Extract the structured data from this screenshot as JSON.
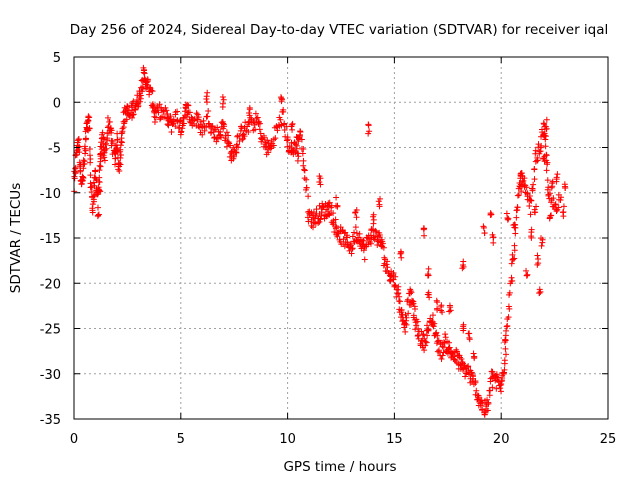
{
  "chart_data": {
    "type": "scatter",
    "title": "Day 256 of 2024, Sidereal Day-to-day VTEC variation (SDTVAR) for receiver iqal",
    "xlabel": "GPS time / hours",
    "ylabel": "SDTVAR / TECUs",
    "xlim": [
      0,
      25
    ],
    "ylim": [
      -35,
      5
    ],
    "xticks": [
      0,
      5,
      10,
      15,
      20,
      25
    ],
    "yticks": [
      5,
      0,
      -5,
      -10,
      -15,
      -20,
      -25,
      -30,
      -35
    ],
    "xtick_labels": [
      "0",
      "5",
      "10",
      "15",
      "20",
      "25"
    ],
    "ytick_labels": [
      "5",
      "0",
      "-5",
      "-10",
      "-15",
      "-20",
      "-25",
      "-30",
      "-35"
    ],
    "grid": true,
    "marker": "+",
    "color": "#ff0000",
    "series": [
      {
        "name": "SDTVAR",
        "trace_points": [
          [
            0.0,
            -9.5
          ],
          [
            0.1,
            -6.0
          ],
          [
            0.2,
            -4.0
          ],
          [
            0.3,
            -7.5
          ],
          [
            0.4,
            -9.0
          ],
          [
            0.5,
            -6.0
          ],
          [
            0.6,
            -3.0
          ],
          [
            0.7,
            -2.0
          ],
          [
            0.8,
            -9.5
          ],
          [
            0.9,
            -11.5
          ],
          [
            1.0,
            -8.0
          ],
          [
            1.1,
            -10.0
          ],
          [
            1.2,
            -9.0
          ],
          [
            1.25,
            -5.5
          ],
          [
            1.35,
            -4.0
          ],
          [
            1.45,
            -6.0
          ],
          [
            1.6,
            -2.5
          ],
          [
            1.75,
            -3.5
          ],
          [
            1.9,
            -6.5
          ],
          [
            2.0,
            -4.0
          ],
          [
            2.1,
            -7.0
          ],
          [
            2.2,
            -5.5
          ],
          [
            2.3,
            -2.0
          ],
          [
            2.45,
            -1.0
          ],
          [
            2.6,
            -1.5
          ],
          [
            2.8,
            -0.5
          ],
          [
            2.95,
            0.0
          ],
          [
            3.1,
            1.0
          ],
          [
            3.25,
            3.0
          ],
          [
            3.35,
            2.5
          ],
          [
            3.5,
            1.5
          ],
          [
            3.7,
            0.0
          ],
          [
            3.8,
            -1.5
          ],
          [
            4.0,
            -1.0
          ],
          [
            4.3,
            -1.5
          ],
          [
            4.55,
            -2.5
          ],
          [
            4.8,
            -1.5
          ],
          [
            5.0,
            -3.0
          ],
          [
            5.15,
            -1.5
          ],
          [
            5.3,
            -0.5
          ],
          [
            5.5,
            -2.0
          ],
          [
            5.8,
            -2.0
          ],
          [
            6.0,
            -3.0
          ],
          [
            6.3,
            -1.5
          ],
          [
            6.55,
            -3.5
          ],
          [
            6.8,
            -3.5
          ],
          [
            7.0,
            -2.5
          ],
          [
            7.2,
            -4.5
          ],
          [
            7.4,
            -6.0
          ],
          [
            7.6,
            -5.0
          ],
          [
            7.8,
            -3.5
          ],
          [
            8.0,
            -3.0
          ],
          [
            8.3,
            -2.5
          ],
          [
            8.6,
            -2.0
          ],
          [
            8.8,
            -4.0
          ],
          [
            9.0,
            -5.0
          ],
          [
            9.2,
            -5.0
          ],
          [
            9.5,
            -3.0
          ],
          [
            9.8,
            -1.5
          ],
          [
            10.0,
            -4.5
          ],
          [
            10.2,
            -5.5
          ],
          [
            10.4,
            -4.5
          ],
          [
            10.6,
            -3.5
          ],
          [
            10.8,
            -7.5
          ],
          [
            11.0,
            -12.5
          ],
          [
            11.2,
            -13.0
          ],
          [
            11.4,
            -12.5
          ],
          [
            11.6,
            -12.0
          ],
          [
            11.8,
            -12.0
          ],
          [
            12.0,
            -11.5
          ],
          [
            12.2,
            -13.5
          ],
          [
            12.4,
            -14.5
          ],
          [
            12.6,
            -15.0
          ],
          [
            12.8,
            -15.5
          ],
          [
            13.0,
            -16.0
          ],
          [
            13.2,
            -14.5
          ],
          [
            13.4,
            -15.0
          ],
          [
            13.6,
            -16.5
          ],
          [
            13.8,
            -15.0
          ],
          [
            14.0,
            -14.5
          ],
          [
            14.2,
            -15.0
          ],
          [
            14.4,
            -15.5
          ],
          [
            14.6,
            -18.0
          ],
          [
            14.8,
            -19.0
          ],
          [
            15.0,
            -19.5
          ],
          [
            15.2,
            -21.5
          ],
          [
            15.35,
            -23.5
          ],
          [
            15.5,
            -24.5
          ],
          [
            15.7,
            -21.5
          ],
          [
            15.85,
            -22.0
          ],
          [
            16.0,
            -24.5
          ],
          [
            16.2,
            -26.0
          ],
          [
            16.4,
            -26.5
          ],
          [
            16.6,
            -25.0
          ],
          [
            16.8,
            -24.0
          ],
          [
            17.0,
            -26.5
          ],
          [
            17.2,
            -27.5
          ],
          [
            17.4,
            -26.5
          ],
          [
            17.6,
            -27.5
          ],
          [
            17.8,
            -28.0
          ],
          [
            18.0,
            -28.5
          ],
          [
            18.2,
            -29.5
          ],
          [
            18.4,
            -29.5
          ],
          [
            18.6,
            -30.5
          ],
          [
            18.8,
            -31.5
          ],
          [
            19.0,
            -33.0
          ],
          [
            19.2,
            -34.0
          ],
          [
            19.4,
            -33.5
          ],
          [
            19.6,
            -30.0
          ],
          [
            19.8,
            -31.0
          ],
          [
            20.0,
            -31.5
          ],
          [
            20.15,
            -29.0
          ],
          [
            20.3,
            -23.5
          ],
          [
            20.5,
            -19.0
          ],
          [
            20.65,
            -14.5
          ],
          [
            20.85,
            -9.5
          ],
          [
            21.0,
            -8.5
          ],
          [
            21.2,
            -10.5
          ],
          [
            21.4,
            -11.5
          ],
          [
            21.6,
            -6.5
          ],
          [
            21.8,
            -5.0
          ],
          [
            22.0,
            -3.0
          ],
          [
            22.1,
            -5.0
          ],
          [
            22.2,
            -10.5
          ],
          [
            22.5,
            -11.5
          ],
          [
            22.8,
            -10.5
          ]
        ],
        "spur_points": [
          [
            0.6,
            -2.5
          ],
          [
            1.15,
            -12.0
          ],
          [
            4.4,
            -2.0
          ],
          [
            6.2,
            0.5
          ],
          [
            7.0,
            0.0
          ],
          [
            8.2,
            -1.0
          ],
          [
            9.7,
            0.0
          ],
          [
            10.2,
            -2.5
          ],
          [
            10.5,
            -6.0
          ],
          [
            11.5,
            -8.5
          ],
          [
            12.3,
            -11.0
          ],
          [
            13.2,
            -12.5
          ],
          [
            13.8,
            -3.0
          ],
          [
            14.0,
            -13.0
          ],
          [
            14.3,
            -11.0
          ],
          [
            15.3,
            -17.0
          ],
          [
            16.4,
            -14.5
          ],
          [
            16.6,
            -19.0
          ],
          [
            16.6,
            -21.5
          ],
          [
            17.0,
            -22.5
          ],
          [
            17.2,
            -23.0
          ],
          [
            17.6,
            -23.0
          ],
          [
            17.5,
            -27.0
          ],
          [
            18.2,
            -18.0
          ],
          [
            18.2,
            -25.0
          ],
          [
            18.5,
            -26.0
          ],
          [
            18.7,
            -28.0
          ],
          [
            19.2,
            -14.0
          ],
          [
            19.5,
            -12.0
          ],
          [
            19.6,
            -15.0
          ],
          [
            20.2,
            -26.0
          ],
          [
            20.3,
            -12.5
          ],
          [
            20.6,
            -14.0
          ],
          [
            20.9,
            -8.0
          ],
          [
            21.2,
            -19.0
          ],
          [
            21.4,
            -14.5
          ],
          [
            21.6,
            -12.0
          ],
          [
            21.7,
            -17.5
          ],
          [
            21.8,
            -21.0
          ],
          [
            21.9,
            -15.5
          ],
          [
            22.0,
            -6.5
          ],
          [
            22.1,
            -2.5
          ],
          [
            22.3,
            -13.0
          ],
          [
            22.4,
            -9.0
          ],
          [
            22.6,
            -8.5
          ],
          [
            22.9,
            -12.0
          ],
          [
            23.0,
            -9.5
          ]
        ]
      }
    ]
  }
}
